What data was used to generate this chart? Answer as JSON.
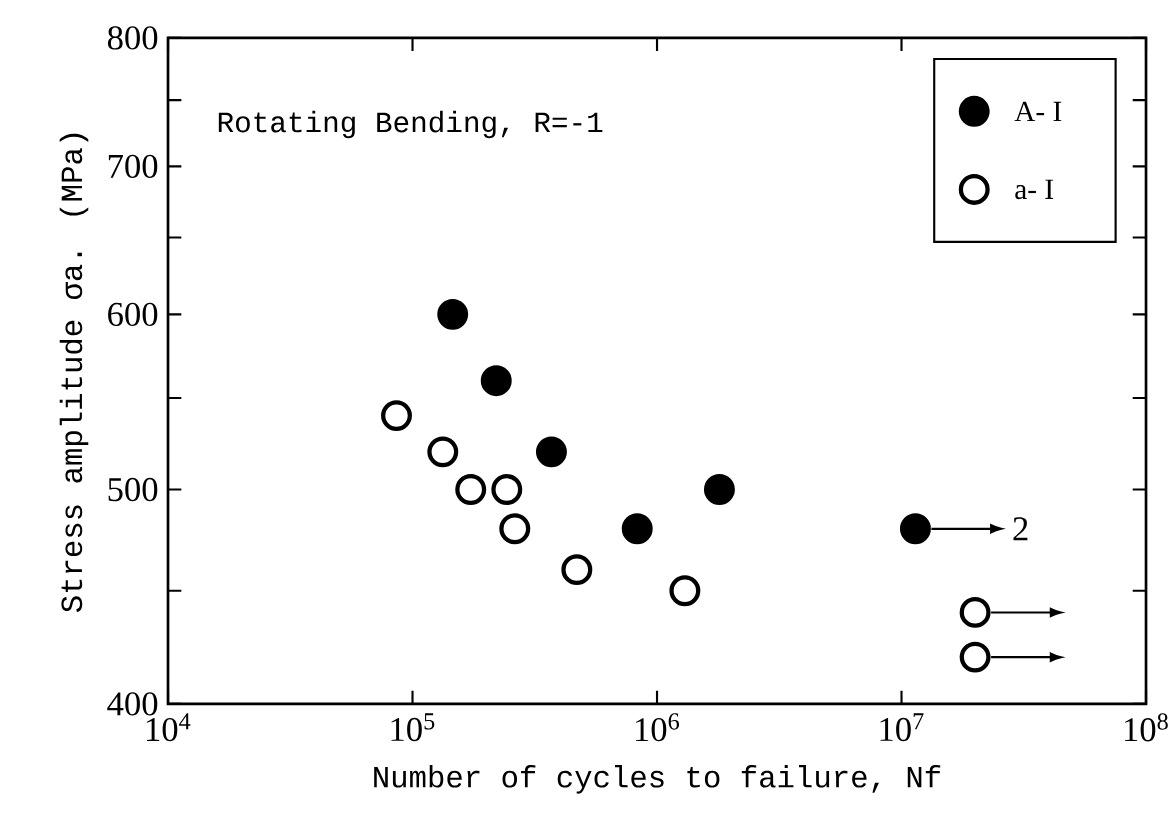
{
  "chart_data": {
    "type": "scatter",
    "xlabel": "Number of cycles to failure, Nf",
    "ylabel": "Stress amplitude σa. (MPa)",
    "annotations": [
      "Rotating Bending, R=-1",
      {
        "text": "2",
        "x": 11400000,
        "y": 480
      }
    ],
    "log": "xy",
    "marker": "circle",
    "legend": "top right",
    "grid": false,
    "xlim": [
      10000,
      100000000
    ],
    "xticks": [
      {
        "value": 10000,
        "label": "10$^{4}$"
      },
      {
        "value": 100000,
        "label": "10$^{5}$"
      },
      {
        "value": 1000000,
        "label": "10$^{6}$"
      },
      {
        "value": 10000000,
        "label": "10$^{7}$"
      },
      {
        "value": 100000000,
        "label": "10$^{8}$"
      }
    ],
    "ylim": [
      400,
      800
    ],
    "yticks": [
      400,
      {
        "value": 450,
        "label": null
      },
      500,
      {
        "value": 550,
        "label": null
      },
      600,
      {
        "value": 650,
        "label": null
      },
      700,
      {
        "value": 750,
        "label": null
      },
      800
    ],
    "series": [
      {
        "name": "A- I",
        "color": "#000000",
        "x": [
          146000,
          220000,
          370000,
          830000,
          1800000,
          11400000
        ],
        "values": [
          600,
          560,
          520,
          480,
          500,
          480
        ]
      },
      {
        "name": "a- I",
        "color": "#ffffff",
        "x": [
          86000,
          133000,
          173000,
          243000,
          262000,
          470000,
          1300000,
          20000000,
          20000000
        ],
        "values": [
          540,
          520,
          500,
          500,
          480,
          460,
          450,
          440,
          420
        ]
      }
    ]
  }
}
